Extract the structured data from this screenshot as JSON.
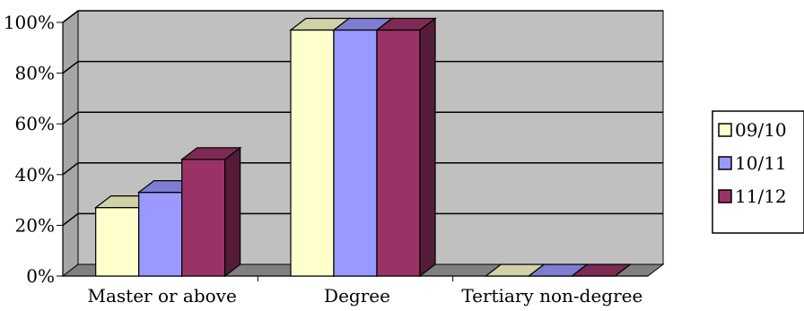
{
  "chart_data": {
    "type": "bar",
    "title": "",
    "xlabel": "",
    "ylabel": "",
    "ylim": [
      0,
      100
    ],
    "yticks": [
      "0%",
      "20%",
      "40%",
      "60%",
      "80%",
      "100%"
    ],
    "categories": [
      "Master or above",
      "Degree",
      "Tertiary non-degree"
    ],
    "series": [
      {
        "name": "09/10",
        "values": [
          27,
          97,
          0
        ],
        "color": "#ffffcc"
      },
      {
        "name": "10/11",
        "values": [
          33,
          97,
          0
        ],
        "color": "#9999ff"
      },
      {
        "name": "11/12",
        "values": [
          46,
          97,
          0
        ],
        "color": "#993366"
      }
    ],
    "grid": true,
    "style": "3d-clustered",
    "plot_background": "#c0c0c0",
    "legend_position": "right"
  }
}
